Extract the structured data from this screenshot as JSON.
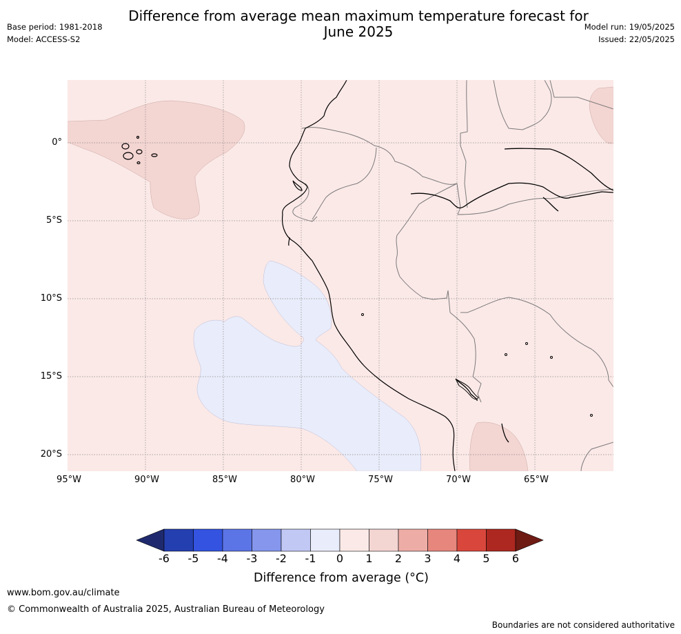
{
  "header": {
    "title_line1": "Difference from average mean maximum temperature forecast for",
    "title_line2": "June 2025",
    "base_period": "Base period: 1981-2018",
    "model": "Model: ACCESS-S2",
    "model_run": "Model run: 19/05/2025",
    "issued": "Issued: 22/05/2025"
  },
  "map": {
    "lat_labels": [
      "0°",
      "5°S",
      "10°S",
      "15°S",
      "20°S"
    ],
    "lon_labels": [
      "95°W",
      "90°W",
      "85°W",
      "80°W",
      "75°W",
      "70°W",
      "65°W"
    ],
    "colors": {
      "background_0_to_1": "#fbe9e7",
      "anomaly_1_to_2": "#f3d5d2",
      "anomaly_minus1_to_0": "#e9ecfa"
    }
  },
  "colorbar": {
    "ticks": [
      "-6",
      "-5",
      "-4",
      "-3",
      "-2",
      "-1",
      "0",
      "1",
      "2",
      "3",
      "4",
      "5",
      "6"
    ],
    "colors": [
      "#1f2a6e",
      "#243fb0",
      "#3353e0",
      "#5b74e6",
      "#8596ec",
      "#c1c8f4",
      "#e9ecfa",
      "#fbe9e7",
      "#f3d5d2",
      "#eeaca6",
      "#e6867d",
      "#d9473c",
      "#ad2820",
      "#6e1b14"
    ],
    "label": "Difference from average (°C)"
  },
  "footer": {
    "url": "www.bom.gov.au/climate",
    "copyright": "© Commonwealth of Australia 2025, Australian Bureau of Meteorology",
    "disclaimer": "Boundaries are not considered authoritative"
  }
}
